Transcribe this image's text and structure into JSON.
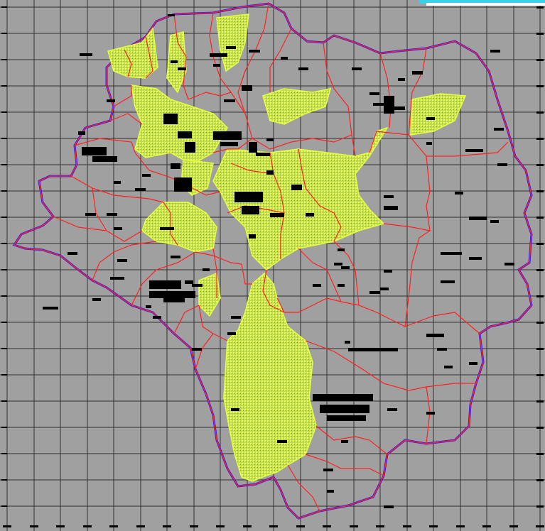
{
  "map": {
    "colors": {
      "background": "#a0a0a0",
      "grid": "#303030",
      "district_border": "#ff2020",
      "outer_border": "#2020ff",
      "highlight_fill": "#c8e650",
      "highlight_stroke": "#e8ff40",
      "building": "#000000",
      "corner_bar": "#3ad0e8"
    },
    "layers": [
      "grid",
      "outer-boundary",
      "district-boundaries",
      "highlighted-zones",
      "buildings",
      "tick-marks"
    ]
  }
}
